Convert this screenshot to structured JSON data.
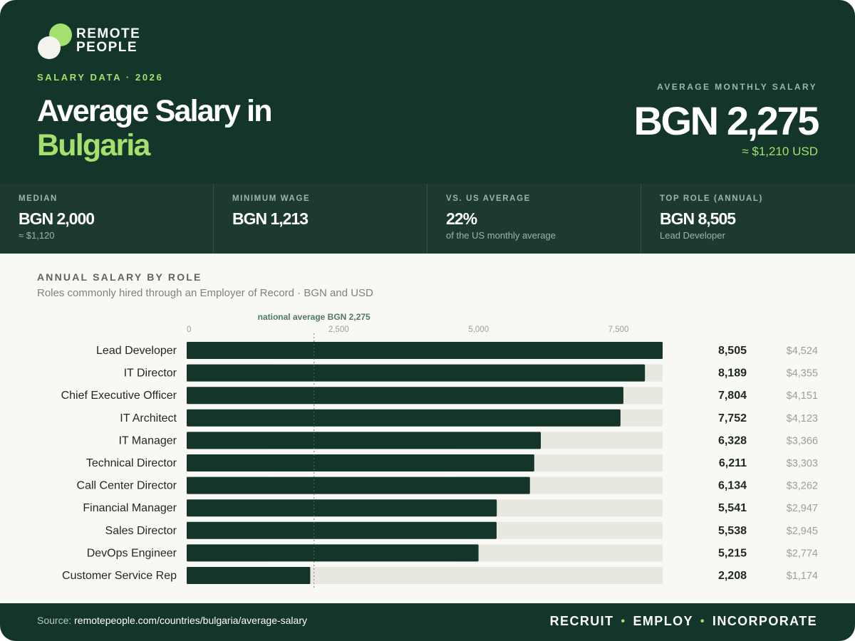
{
  "brand": {
    "logo_text_line1": "REMOTE",
    "logo_text_line2": "PEOPLE"
  },
  "header": {
    "eyebrow": "SALARY DATA · 2026",
    "title_line1": "Average Salary in",
    "title_line2": "Bulgaria",
    "avg_label": "AVERAGE MONTHLY SALARY",
    "avg_value": "BGN 2,275",
    "avg_usd": "≈ $1,210 USD"
  },
  "stats": [
    {
      "label": "MEDIAN",
      "value": "BGN 2,000",
      "sub": "≈ $1,120"
    },
    {
      "label": "MINIMUM WAGE",
      "value": "BGN 1,213",
      "sub": ""
    },
    {
      "label": "VS. US AVERAGE",
      "value": "22%",
      "sub": "of the US monthly average"
    },
    {
      "label": "TOP ROLE (ANNUAL)",
      "value": "BGN 8,505",
      "sub": "Lead Developer"
    }
  ],
  "chart_data": {
    "type": "bar",
    "orientation": "horizontal",
    "title": "ANNUAL SALARY BY ROLE",
    "subtitle": "Roles commonly hired through an Employer of Record · BGN and USD",
    "xlim": [
      0,
      8505
    ],
    "x_ticks": [
      0,
      2500,
      5000,
      7500
    ],
    "x_tick_labels": [
      "0",
      "2,500",
      "5,000",
      "7,500"
    ],
    "reference_line": {
      "value": 2275,
      "label": "national average BGN 2,275"
    },
    "categories": [
      "Lead Developer",
      "IT Director",
      "Chief Executive Officer",
      "IT Architect",
      "IT Manager",
      "Technical Director",
      "Call Center Director",
      "Financial Manager",
      "Sales Director",
      "DevOps Engineer",
      "Customer Service Rep"
    ],
    "values": [
      8505,
      8189,
      7804,
      7752,
      6328,
      6211,
      6134,
      5541,
      5538,
      5215,
      2208
    ],
    "value_labels": [
      "8,505",
      "8,189",
      "7,804",
      "7,752",
      "6,328",
      "6,211",
      "6,134",
      "5,541",
      "5,538",
      "5,215",
      "2,208"
    ],
    "usd_labels": [
      "$4,524",
      "$4,355",
      "$4,151",
      "$4,123",
      "$3,366",
      "$3,303",
      "$3,262",
      "$2,947",
      "$2,945",
      "$2,774",
      "$1,174"
    ],
    "colors": {
      "bar": "#14352a",
      "track": "#e8e8e0",
      "ref_line": "#4f7a5e",
      "ref_label": "#4f7a5e"
    }
  },
  "footer": {
    "source_prefix": "Source:",
    "source_url": "remotepeople.com/countries/bulgaria/average-salary",
    "tagline": [
      "RECRUIT",
      "EMPLOY",
      "INCORPORATE"
    ]
  },
  "colors": {
    "primary_dark": "#14352a",
    "accent_green": "#a3e06d",
    "stats_bg": "#1c3a30",
    "page_bg": "#f8f8f4"
  }
}
